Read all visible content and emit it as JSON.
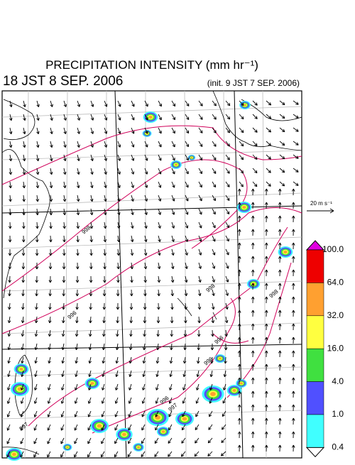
{
  "header": {
    "title": "PRECIPITATION INTENSITY (mm hr⁻¹)",
    "valid_time": "18 JST 8 SEP. 2006",
    "init_time": "(init. 9 JST 7 SEP. 2006)"
  },
  "wind_scale": {
    "label": "20 m s⁻¹"
  },
  "colorbar": {
    "labels": [
      "100.0",
      "64.0",
      "32.0",
      "16.0",
      "4.0",
      "1.0",
      "0.4"
    ],
    "colors": [
      "#e000e0",
      "#ee0000",
      "#ffa030",
      "#ffff40",
      "#40e040",
      "#5050ff",
      "#40ffff",
      "#ffffff"
    ]
  },
  "contour_labels": [
    "998",
    "996",
    "998",
    "998",
    "996",
    "996",
    "997",
    "997",
    "996"
  ]
}
